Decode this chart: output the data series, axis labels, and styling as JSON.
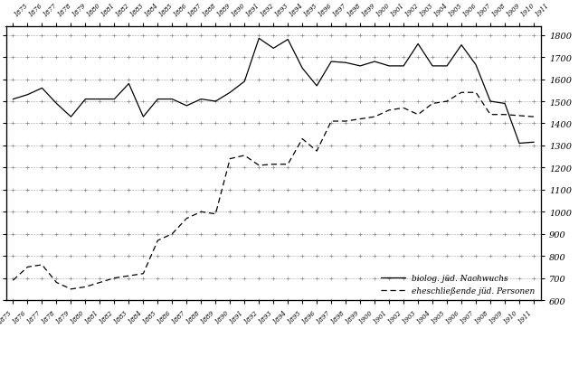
{
  "years": [
    1875,
    1876,
    1877,
    1878,
    1879,
    1880,
    1881,
    1882,
    1883,
    1884,
    1885,
    1886,
    1887,
    1888,
    1889,
    1890,
    1891,
    1892,
    1893,
    1894,
    1895,
    1896,
    1897,
    1898,
    1899,
    1900,
    1901,
    1902,
    1903,
    1904,
    1905,
    1906,
    1907,
    1908,
    1909,
    1910,
    1911
  ],
  "solid_vals": [
    1510,
    1530,
    1560,
    1490,
    1430,
    1510,
    1510,
    1510,
    1580,
    1430,
    1510,
    1510,
    1480,
    1510,
    1500,
    1540,
    1590,
    1785,
    1740,
    1780,
    1650,
    1570,
    1680,
    1675,
    1660,
    1680,
    1660,
    1660,
    1760,
    1660,
    1660,
    1755,
    1665,
    1500,
    1490,
    1310,
    1315
  ],
  "dashed_vals": [
    690,
    750,
    760,
    680,
    650,
    660,
    680,
    700,
    710,
    720,
    870,
    900,
    970,
    1000,
    990,
    1240,
    1255,
    1210,
    1215,
    1215,
    1330,
    1275,
    1410,
    1410,
    1420,
    1430,
    1460,
    1470,
    1440,
    1490,
    1500,
    1540,
    1540,
    1440,
    1440,
    1435,
    1430
  ],
  "ylim": [
    600,
    1840
  ],
  "yticks": [
    600,
    700,
    800,
    900,
    1000,
    1100,
    1200,
    1300,
    1400,
    1500,
    1600,
    1700,
    1800
  ],
  "legend_solid": "biolog. jüd. Nachwuchs",
  "legend_dashed": "eheschließende jüd. Personen"
}
